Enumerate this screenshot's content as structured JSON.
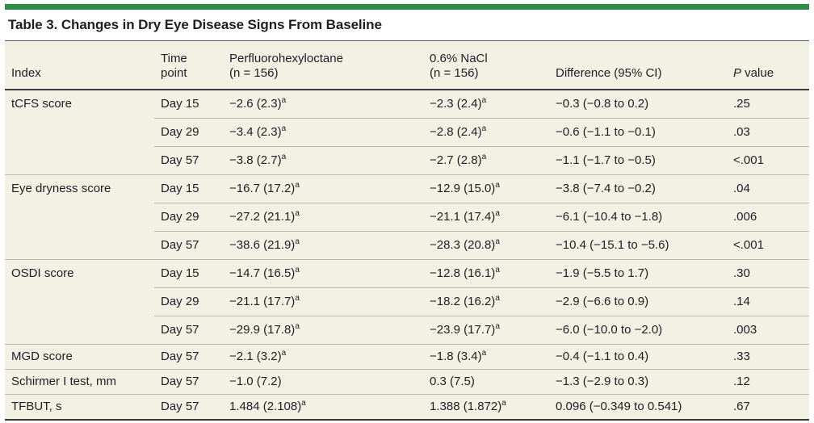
{
  "title": "Table 3. Changes in Dry Eye Disease Signs From Baseline",
  "colors": {
    "accent_green": "#2f8c44",
    "table_background": "#f3f0e4",
    "dark_rule": "#3a3a3c",
    "row_divider": "#bdb9aa",
    "text": "#1e1e26"
  },
  "header": {
    "columns": [
      {
        "label": "Index",
        "italic_first_word": false
      },
      {
        "label": "Time\npoint",
        "italic_first_word": false
      },
      {
        "label": "Perfluorohexyloctane\n(n = 156)",
        "italic_first_word": false
      },
      {
        "label": "0.6% NaCl\n(n = 156)",
        "italic_first_word": false
      },
      {
        "label": "Difference (95% CI)",
        "italic_first_word": false
      },
      {
        "label": "P value",
        "italic_first_word": true
      }
    ]
  },
  "rows": [
    {
      "index": "tCFS score",
      "time": "Day 15",
      "drug": "−2.6 (2.3)^a",
      "nacl": "−2.3 (2.4)^a",
      "diff": "−0.3 (−0.8 to 0.2)",
      "p": ".25",
      "group_start": true
    },
    {
      "index": "",
      "time": "Day 29",
      "drug": "−3.4 (2.3)^a",
      "nacl": "−2.8 (2.4)^a",
      "diff": "−0.6 (−1.1 to −0.1)",
      "p": ".03",
      "group_start": false
    },
    {
      "index": "",
      "time": "Day 57",
      "drug": "−3.8 (2.7)^a",
      "nacl": "−2.7 (2.8)^a",
      "diff": "−1.1 (−1.7 to −0.5)",
      "p": "<.001",
      "group_start": false
    },
    {
      "index": "Eye dryness score",
      "time": "Day 15",
      "drug": "−16.7 (17.2)^a",
      "nacl": "−12.9 (15.0)^a",
      "diff": "−3.8 (−7.4 to −0.2)",
      "p": ".04",
      "group_start": true
    },
    {
      "index": "",
      "time": "Day 29",
      "drug": "−27.2 (21.1)^a",
      "nacl": "−21.1 (17.4)^a",
      "diff": "−6.1 (−10.4 to −1.8)",
      "p": ".006",
      "group_start": false
    },
    {
      "index": "",
      "time": "Day 57",
      "drug": "−38.6 (21.9)^a",
      "nacl": "−28.3 (20.8)^a",
      "diff": "−10.4 (−15.1 to −5.6)",
      "p": "<.001",
      "group_start": false
    },
    {
      "index": "OSDI score",
      "time": "Day 15",
      "drug": "−14.7 (16.5)^a",
      "nacl": "−12.8 (16.1)^a",
      "diff": "−1.9 (−5.5 to 1.7)",
      "p": ".30",
      "group_start": true
    },
    {
      "index": "",
      "time": "Day 29",
      "drug": "−21.1 (17.7)^a",
      "nacl": "−18.2 (16.2)^a",
      "diff": "−2.9 (−6.6 to 0.9)",
      "p": ".14",
      "group_start": false
    },
    {
      "index": "",
      "time": "Day 57",
      "drug": "−29.9 (17.8)^a",
      "nacl": "−23.9 (17.7)^a",
      "diff": "−6.0 (−10.0 to −2.0)",
      "p": ".003",
      "group_start": false
    },
    {
      "index": "MGD score",
      "time": "Day 57",
      "drug": "−2.1 (3.2)^a",
      "nacl": "−1.8 (3.4)^a",
      "diff": "−0.4 (−1.1 to 0.4)",
      "p": ".33",
      "group_start": true
    },
    {
      "index": "Schirmer I test, mm",
      "time": "Day 57",
      "drug": "−1.0 (7.2)",
      "nacl": "0.3 (7.5)",
      "diff": "−1.3 (−2.9 to 0.3)",
      "p": ".12",
      "group_start": true
    },
    {
      "index": "TFBUT, s",
      "time": "Day 57",
      "drug": "1.484 (2.108)^a",
      "nacl": "1.388 (1.872)^a",
      "diff": "0.096 (−0.349 to 0.541)",
      "p": ".67",
      "group_start": true
    }
  ]
}
